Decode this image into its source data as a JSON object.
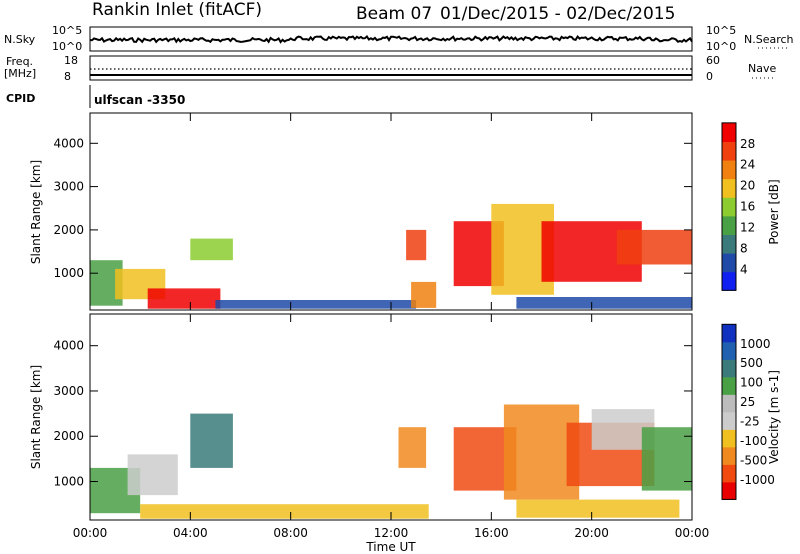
{
  "header": {
    "station": "Rankin Inlet (fitACF)",
    "beam": "Beam 07",
    "dates": "01/Dec/2015 - 02/Dec/2015",
    "cpid_label": "CPID",
    "cpid_value": "ulfscan -3350"
  },
  "top_panels": {
    "nsky_label": "N.Sky",
    "nsky_ticks": [
      "10^5",
      "10^0"
    ],
    "nsearch_label": "N.Search",
    "nsearch_ticks": [
      "10^5",
      "10^0"
    ],
    "freq_label": "Freq.",
    "freq_unit": "[MHz]",
    "freq_ticks": [
      "18",
      "8"
    ],
    "nave_label": "Nave",
    "nave_ticks": [
      "60",
      "0"
    ]
  },
  "colors": {
    "power": [
      "#1020f0",
      "#1f4aa8",
      "#3a7a7a",
      "#4aa045",
      "#8ccc30",
      "#f0c020",
      "#f08010",
      "#f04010",
      "#f00000"
    ],
    "velocity": [
      "#e80000",
      "#f04a10",
      "#f08a20",
      "#f0c020",
      "#cccccc",
      "#bcbcbc",
      "#4aa045",
      "#3a7a7a",
      "#2060b0",
      "#1030c0"
    ]
  },
  "chart_data": [
    {
      "type": "heatmap",
      "panel": "power",
      "ylabel": "Slant Range [km]",
      "yticks": [
        "1000",
        "2000",
        "3000",
        "4000"
      ],
      "ylim": [
        150,
        4700
      ],
      "xlim": [
        0,
        24
      ],
      "colorbar_label": "Power [dB]",
      "colorbar_ticks": [
        "28",
        "24",
        "20",
        "16",
        "12",
        "8",
        "4"
      ],
      "regions": [
        {
          "t0": 0.0,
          "t1": 1.3,
          "r0": 250,
          "r1": 1300,
          "level": 3
        },
        {
          "t0": 1.0,
          "t1": 3.0,
          "r0": 400,
          "r1": 1100,
          "level": 5
        },
        {
          "t0": 2.3,
          "t1": 5.2,
          "r0": 180,
          "r1": 650,
          "level": 8
        },
        {
          "t0": 4.0,
          "t1": 5.7,
          "r0": 1300,
          "r1": 1800,
          "level": 4
        },
        {
          "t0": 5.0,
          "t1": 13.0,
          "r0": 180,
          "r1": 380,
          "level": 1
        },
        {
          "t0": 12.6,
          "t1": 13.4,
          "r0": 1300,
          "r1": 2000,
          "level": 7
        },
        {
          "t0": 12.8,
          "t1": 13.8,
          "r0": 200,
          "r1": 800,
          "level": 6
        },
        {
          "t0": 14.5,
          "t1": 16.5,
          "r0": 700,
          "r1": 2200,
          "level": 8
        },
        {
          "t0": 16.0,
          "t1": 18.5,
          "r0": 500,
          "r1": 2600,
          "level": 5
        },
        {
          "t0": 18.0,
          "t1": 22.0,
          "r0": 800,
          "r1": 2200,
          "level": 8
        },
        {
          "t0": 21.0,
          "t1": 24.0,
          "r0": 1200,
          "r1": 2000,
          "level": 7
        },
        {
          "t0": 17.0,
          "t1": 24.0,
          "r0": 180,
          "r1": 450,
          "level": 1
        }
      ]
    },
    {
      "type": "heatmap",
      "panel": "velocity",
      "ylabel": "Slant Range [km]",
      "yticks": [
        "1000",
        "2000",
        "3000",
        "4000"
      ],
      "ylim": [
        150,
        4700
      ],
      "xlim": [
        0,
        24
      ],
      "xlabel": "Time UT",
      "xticks": [
        "00:00",
        "04:00",
        "08:00",
        "12:00",
        "16:00",
        "20:00",
        "00:00"
      ],
      "colorbar_label": "Velocity [m s-1]",
      "colorbar_ticks": [
        "1000",
        "500",
        "100",
        "25",
        "-25",
        "-100",
        "-500",
        "-1000"
      ],
      "regions": [
        {
          "t0": 0.0,
          "t1": 2.0,
          "r0": 300,
          "r1": 1300,
          "level": 6
        },
        {
          "t0": 1.5,
          "t1": 3.5,
          "r0": 700,
          "r1": 1600,
          "level": 4
        },
        {
          "t0": 2.0,
          "t1": 13.5,
          "r0": 180,
          "r1": 500,
          "level": 3
        },
        {
          "t0": 4.0,
          "t1": 5.7,
          "r0": 1300,
          "r1": 2500,
          "level": 7
        },
        {
          "t0": 12.3,
          "t1": 13.4,
          "r0": 1300,
          "r1": 2200,
          "level": 2
        },
        {
          "t0": 14.5,
          "t1": 17.0,
          "r0": 800,
          "r1": 2200,
          "level": 1
        },
        {
          "t0": 16.5,
          "t1": 19.5,
          "r0": 600,
          "r1": 2700,
          "level": 2
        },
        {
          "t0": 19.0,
          "t1": 22.5,
          "r0": 900,
          "r1": 2300,
          "level": 1
        },
        {
          "t0": 20.0,
          "t1": 22.5,
          "r0": 1700,
          "r1": 2600,
          "level": 4
        },
        {
          "t0": 22.0,
          "t1": 24.0,
          "r0": 800,
          "r1": 2200,
          "level": 6
        },
        {
          "t0": 17.0,
          "t1": 23.5,
          "r0": 200,
          "r1": 600,
          "level": 3
        }
      ]
    }
  ]
}
